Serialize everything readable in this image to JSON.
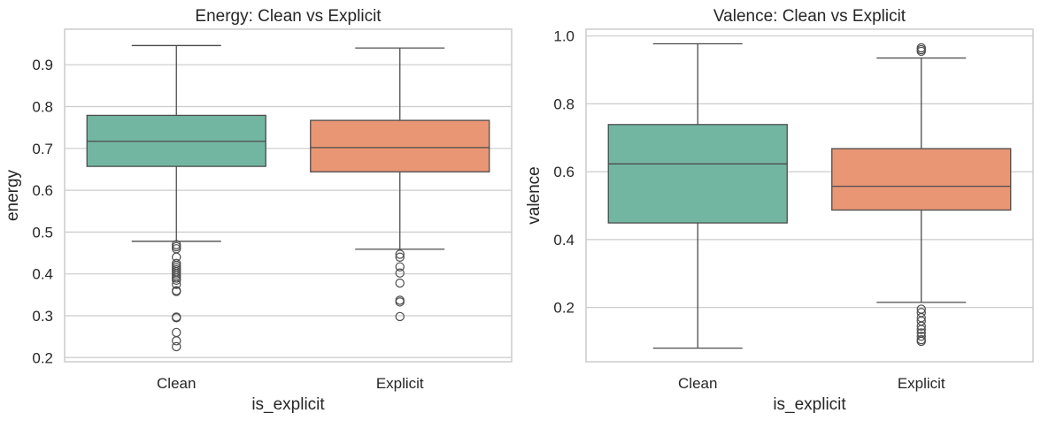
{
  "chart_data": [
    {
      "type": "box",
      "title": "Energy: Clean vs Explicit",
      "xlabel": "is_explicit",
      "ylabel": "energy",
      "ylim": [
        0.19,
        0.985
      ],
      "yticks": [
        0.2,
        0.3,
        0.4,
        0.5,
        0.6,
        0.7,
        0.8,
        0.9
      ],
      "ytick_labels": [
        "0.2",
        "0.3",
        "0.4",
        "0.5",
        "0.6",
        "0.7",
        "0.8",
        "0.9"
      ],
      "grid": true,
      "categories": [
        "Clean",
        "Explicit"
      ],
      "boxes": [
        {
          "category": "Clean",
          "color": "#72b6a1",
          "whisker_low": 0.478,
          "q1": 0.657,
          "median": 0.717,
          "q3": 0.779,
          "whisker_high": 0.946,
          "outliers": [
            0.47,
            0.465,
            0.46,
            0.44,
            0.425,
            0.42,
            0.415,
            0.41,
            0.405,
            0.4,
            0.395,
            0.39,
            0.385,
            0.375,
            0.36,
            0.358,
            0.297,
            0.295,
            0.26,
            0.24,
            0.226
          ]
        },
        {
          "category": "Explicit",
          "color": "#e99675",
          "whisker_low": 0.459,
          "q1": 0.644,
          "median": 0.702,
          "q3": 0.767,
          "whisker_high": 0.94,
          "outliers": [
            0.447,
            0.44,
            0.417,
            0.402,
            0.378,
            0.337,
            0.333,
            0.298
          ]
        }
      ]
    },
    {
      "type": "box",
      "title": "Valence: Clean vs Explicit",
      "xlabel": "is_explicit",
      "ylabel": "valence",
      "ylim": [
        0.04,
        1.02
      ],
      "yticks": [
        0.2,
        0.4,
        0.6,
        0.8,
        1.0
      ],
      "ytick_labels": [
        "0.2",
        "0.4",
        "0.6",
        "0.8",
        "1.0"
      ],
      "grid": true,
      "categories": [
        "Clean",
        "Explicit"
      ],
      "boxes": [
        {
          "category": "Clean",
          "color": "#72b6a1",
          "whisker_low": 0.08,
          "q1": 0.449,
          "median": 0.623,
          "q3": 0.739,
          "whisker_high": 0.977,
          "outliers": []
        },
        {
          "category": "Explicit",
          "color": "#e99675",
          "whisker_low": 0.215,
          "q1": 0.487,
          "median": 0.557,
          "q3": 0.668,
          "whisker_high": 0.935,
          "outliers": [
            0.965,
            0.96,
            0.955,
            0.195,
            0.185,
            0.17,
            0.16,
            0.145,
            0.135,
            0.125,
            0.115,
            0.105,
            0.1
          ]
        }
      ]
    }
  ]
}
